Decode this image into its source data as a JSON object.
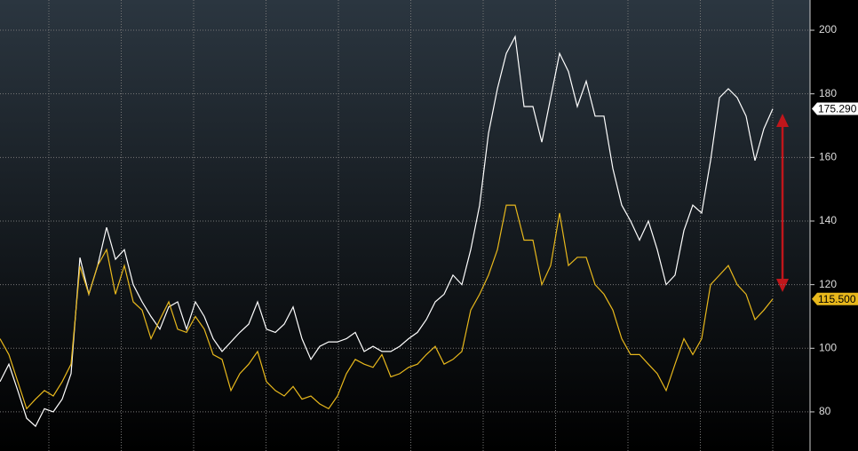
{
  "chart_data": {
    "type": "line",
    "series": [
      {
        "name": "white",
        "color": "#ffffff",
        "last_value_label": "175.290",
        "values": [
          89.5,
          95,
          86.7,
          78,
          75.5,
          81,
          80,
          84,
          92,
          128.5,
          117,
          126,
          138,
          128,
          131,
          120,
          114.6,
          110,
          106,
          113,
          114.6,
          106,
          114.6,
          110,
          103,
          99,
          102,
          105,
          107.6,
          114.6,
          106,
          105,
          107.6,
          113,
          103,
          96.5,
          100.6,
          102,
          102,
          103,
          105,
          99,
          100.6,
          99,
          99,
          100.6,
          103,
          105,
          109,
          114.6,
          117,
          123,
          120,
          131,
          145,
          167.6,
          181.6,
          192.7,
          198,
          176,
          176,
          164.8,
          178.8,
          192.7,
          187,
          176,
          184,
          173,
          173,
          156.5,
          145,
          140,
          134,
          140,
          131,
          120,
          123,
          137,
          145,
          142.5,
          159,
          178.8,
          181.6,
          178.8,
          173,
          159,
          169,
          175.29
        ]
      },
      {
        "name": "yellow",
        "color": "#e8b81c",
        "last_value_label": "115.500",
        "values": [
          103,
          98,
          89.5,
          81,
          84,
          86.7,
          85,
          89.5,
          95,
          125.8,
          117,
          126,
          131,
          117,
          126,
          114.6,
          112,
          103,
          109,
          114.6,
          106,
          105,
          110,
          106,
          98,
          96.5,
          86.7,
          92,
          95,
          99,
          89.5,
          86.7,
          85,
          88,
          84,
          85,
          82.5,
          81,
          85,
          92,
          96.5,
          95,
          94,
          98,
          91,
          92,
          94,
          95,
          98,
          100.6,
          95,
          96.5,
          99,
          112,
          117,
          123,
          131,
          145,
          145,
          134,
          134,
          120,
          126,
          142.5,
          126,
          128.6,
          128.6,
          120,
          117,
          112,
          103,
          98,
          98,
          95,
          92,
          86.7,
          95,
          103,
          98,
          103,
          120,
          123,
          126,
          120,
          117,
          109,
          112,
          115.5
        ]
      }
    ],
    "ylim": [
      67.7,
      209.5
    ],
    "yticks": [
      80,
      100,
      120,
      140,
      160,
      180,
      200
    ],
    "grid": true
  }
}
